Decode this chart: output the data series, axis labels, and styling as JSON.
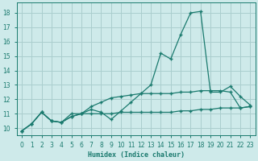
{
  "xlabel": "Humidex (Indice chaleur)",
  "bg_color": "#ceeaea",
  "grid_color": "#aacece",
  "line_color": "#1a7a6e",
  "x_values": [
    0,
    1,
    2,
    3,
    4,
    5,
    6,
    7,
    8,
    9,
    10,
    11,
    12,
    13,
    14,
    15,
    16,
    17,
    18,
    19,
    20,
    21,
    22,
    23
  ],
  "curve1": [
    9.8,
    10.3,
    11.1,
    10.5,
    10.4,
    11.0,
    11.0,
    11.3,
    11.1,
    10.6,
    11.2,
    11.8,
    12.4,
    13.0,
    15.2,
    14.8,
    16.5,
    18.0,
    18.1,
    12.5,
    12.5,
    12.9,
    12.2,
    11.6
  ],
  "curve2": [
    9.8,
    10.3,
    11.1,
    10.5,
    10.4,
    10.8,
    11.0,
    11.5,
    11.8,
    12.1,
    12.2,
    12.3,
    12.4,
    12.4,
    12.4,
    12.4,
    12.5,
    12.5,
    12.6,
    12.6,
    12.6,
    12.5,
    11.4,
    11.5
  ],
  "curve3": [
    9.8,
    10.3,
    11.1,
    10.5,
    10.4,
    10.8,
    11.0,
    11.0,
    11.0,
    11.0,
    11.1,
    11.1,
    11.1,
    11.1,
    11.1,
    11.1,
    11.2,
    11.2,
    11.3,
    11.3,
    11.4,
    11.4,
    11.4,
    11.5
  ],
  "ylim": [
    9.5,
    18.7
  ],
  "yticks": [
    10,
    11,
    12,
    13,
    14,
    15,
    16,
    17,
    18
  ],
  "xlim": [
    -0.5,
    23.5
  ],
  "xticks": [
    0,
    1,
    2,
    3,
    4,
    5,
    6,
    7,
    8,
    9,
    10,
    11,
    12,
    13,
    14,
    15,
    16,
    17,
    18,
    19,
    20,
    21,
    22,
    23
  ]
}
